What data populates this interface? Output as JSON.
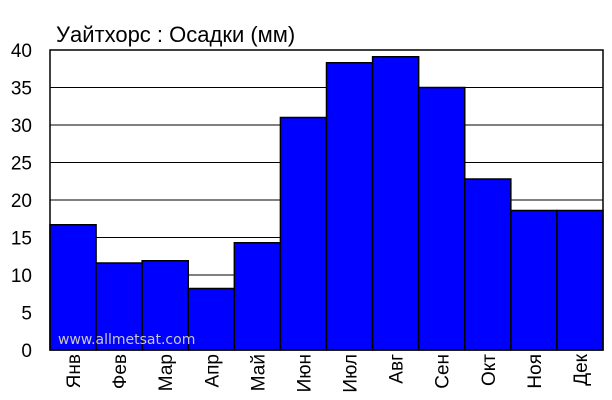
{
  "chart_data": {
    "type": "bar",
    "title": "Уайтхорс : Осадки (мм)",
    "categories": [
      "Янв",
      "Фев",
      "Мар",
      "Апр",
      "Май",
      "Июн",
      "Июл",
      "Авг",
      "Сен",
      "Окт",
      "Ноя",
      "Дек"
    ],
    "values": [
      16.7,
      11.6,
      11.9,
      8.2,
      14.3,
      31.0,
      38.3,
      39.1,
      35.0,
      22.8,
      18.6,
      18.6
    ],
    "ylim": [
      0,
      40
    ],
    "yticks": [
      "0",
      "5",
      "10",
      "15",
      "20",
      "25",
      "30",
      "35",
      "40"
    ],
    "grid": true,
    "bar_color": "#0000ff",
    "watermark": "www.allmetsat.com"
  }
}
